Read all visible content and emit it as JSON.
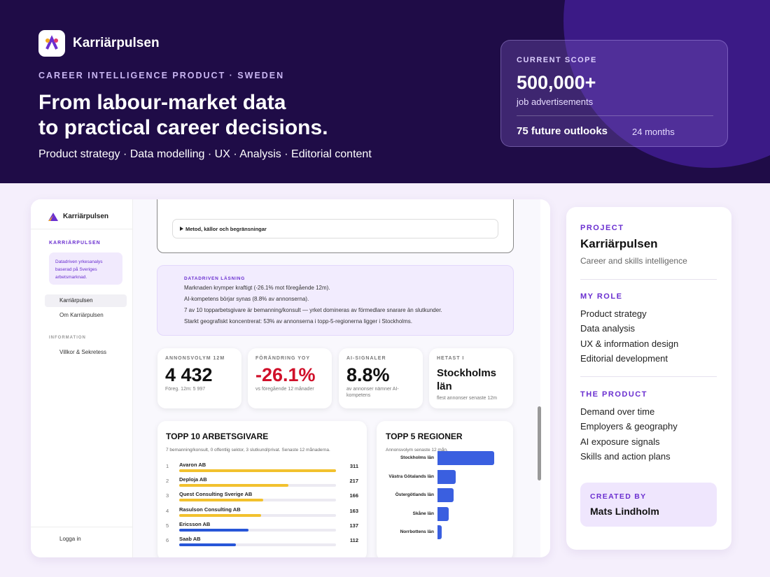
{
  "header": {
    "brand": "Karriärpulsen",
    "eyebrow": "CAREER INTELLIGENCE PRODUCT · SWEDEN",
    "title_lines": [
      "From labour-market data",
      "to practical career decisions."
    ],
    "subtitle": "Product strategy · Data modelling · UX · Analysis · Editorial content"
  },
  "scope": {
    "label": "CURRENT SCOPE",
    "value": "500,000+",
    "unit": "job advertisements",
    "outlooks": "75 future outlooks",
    "horizon": "24 months"
  },
  "app": {
    "sidebar": {
      "brand": "Karriärpulsen",
      "section": "KARRIÄRPULSEN",
      "blurb": "Datadriven yrkesanalys baserad på Sveriges arbetsmarknad.",
      "nav": [
        "Karriärpulsen",
        "Om Karriärpulsen"
      ],
      "info_label": "INFORMATION",
      "info_nav": [
        "Villkor & Sekretess"
      ],
      "login": "Logga in"
    },
    "method_toggle": "Metod, källor och begränsningar",
    "insight": {
      "label": "DATADRIVEN LÄSNING",
      "lines": [
        "Marknaden krymper kraftigt (-26.1% mot föregående 12m).",
        "AI-kompetens börjar synas (8.8% av annonserna).",
        "7 av 10 topparbetsgivare är bemanning/konsult — yrket domineras av förmedlare snarare än slutkunder.",
        "Starkt geografiskt koncentrerat: 53% av annonserna i topp-5-regionerna ligger i Stockholms."
      ]
    },
    "kpis": [
      {
        "label": "ANNONSVOLYM 12M",
        "value": "4 432",
        "note": "Föreg. 12m: 5 997",
        "color": "#111111"
      },
      {
        "label": "FÖRÄNDRING YOY",
        "value": "-26.1%",
        "note": "vs föregående 12 månader",
        "color": "#d0102a"
      },
      {
        "label": "AI-SIGNALER",
        "value": "8.8%",
        "note": "av annonser nämner AI-kompetens",
        "color": "#111111"
      },
      {
        "label": "HETAST I",
        "value": "Stockholms län",
        "note": "flest annonser senaste 12m",
        "color": "#111111"
      }
    ],
    "employers": {
      "title": "TOPP 10 ARBETSGIVARE",
      "note": "7 bemanning/konsult, 0 offentlig sektor, 3 slutkund/privat. Senaste 12 månaderna.",
      "rows": [
        {
          "rank": 1,
          "name": "Avaron AB",
          "value": 311,
          "color": "#f2c12e"
        },
        {
          "rank": 2,
          "name": "Deploja AB",
          "value": 217,
          "color": "#f2c12e"
        },
        {
          "rank": 3,
          "name": "Quest Consulting Sverige AB",
          "value": 166,
          "color": "#f2c12e"
        },
        {
          "rank": 4,
          "name": "Rasulson Consulting AB",
          "value": 163,
          "color": "#f2c12e"
        },
        {
          "rank": 5,
          "name": "Ericsson AB",
          "value": 137,
          "color": "#2856d8"
        },
        {
          "rank": 6,
          "name": "Saab AB",
          "value": 112,
          "color": "#2856d8"
        }
      ]
    },
    "regions": {
      "title": "TOPP 5 REGIONER",
      "subtitle": "Annonsvolym senaste 12 mån.",
      "color": "#3a5fe0",
      "rows": [
        {
          "name": "Stockholms län",
          "value": 1215
        },
        {
          "name": "Västra Götalands län",
          "value": 390
        },
        {
          "name": "Östergötlands län",
          "value": 345
        },
        {
          "name": "Skåne län",
          "value": 240
        },
        {
          "name": "Norrbottens län",
          "value": 90
        }
      ]
    }
  },
  "project": {
    "label": "PROJECT",
    "name": "Karriärpulsen",
    "tagline": "Career and skills intelligence",
    "role_label": "MY ROLE",
    "roles": [
      "Product strategy",
      "Data analysis",
      "UX & information design",
      "Editorial development"
    ],
    "product_label": "THE PRODUCT",
    "product": [
      "Demand over time",
      "Employers & geography",
      "AI exposure signals",
      "Skills and action plans"
    ],
    "created_label": "CREATED BY",
    "author": "Mats Lindholm"
  }
}
